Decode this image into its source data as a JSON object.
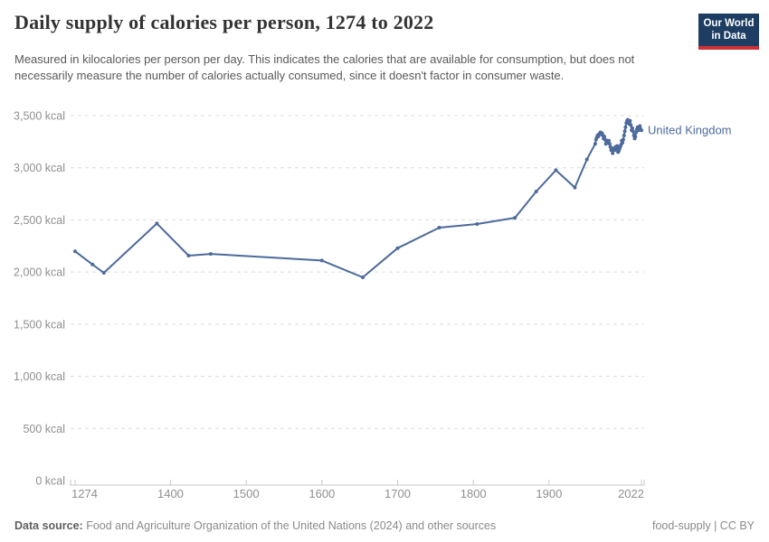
{
  "header": {
    "title": "Daily supply of calories per person, 1274 to 2022",
    "subtitle": "Measured in kilocalories per person per day. This indicates the calories that are available for consumption, but does not necessarily measure the number of calories actually consumed, since it doesn't factor in consumer waste.",
    "logo": {
      "line1": "Our World",
      "line2": "in Data",
      "bg": "#1d3d63",
      "accent": "#cf3035"
    }
  },
  "chart_data": {
    "type": "line",
    "title": "Daily supply of calories per person, 1274 to 2022",
    "xlabel": "",
    "ylabel": "",
    "xlim": [
      1274,
      2022
    ],
    "ylim": [
      0,
      3500
    ],
    "grid": "horizontal-dashed",
    "legend_position": "end-of-line-label",
    "line_color": "#4C6A9C",
    "grid_color": "#dcdcdc",
    "axis_color": "#c9c9c9",
    "tick_label_color": "#8f8f8f",
    "yticks": [
      {
        "v": 0,
        "label": "0 kcal"
      },
      {
        "v": 500,
        "label": "500 kcal"
      },
      {
        "v": 1000,
        "label": "1,000 kcal"
      },
      {
        "v": 1500,
        "label": "1,500 kcal"
      },
      {
        "v": 2000,
        "label": "2,000 kcal"
      },
      {
        "v": 2500,
        "label": "2,500 kcal"
      },
      {
        "v": 3000,
        "label": "3,000 kcal"
      },
      {
        "v": 3500,
        "label": "3,500 kcal"
      }
    ],
    "xticks": [
      1274,
      1400,
      1500,
      1600,
      1700,
      1800,
      1900,
      2022
    ],
    "series": [
      {
        "name": "United Kingdom",
        "color": "#4C6A9C",
        "points": [
          [
            1274,
            2199
          ],
          [
            1297,
            2072
          ],
          [
            1312,
            1993
          ],
          [
            1382,
            2466
          ],
          [
            1424,
            2157
          ],
          [
            1453,
            2174
          ],
          [
            1600,
            2110
          ],
          [
            1654,
            1949
          ],
          [
            1700,
            2229
          ],
          [
            1755,
            2426
          ],
          [
            1805,
            2460
          ],
          [
            1855,
            2520
          ],
          [
            1883,
            2772
          ],
          [
            1909,
            2977
          ],
          [
            1934,
            2810
          ],
          [
            1950,
            3080
          ],
          [
            1961,
            3230
          ],
          [
            1962,
            3270
          ],
          [
            1963,
            3290
          ],
          [
            1964,
            3310
          ],
          [
            1965,
            3300
          ],
          [
            1966,
            3320
          ],
          [
            1967,
            3330
          ],
          [
            1968,
            3340
          ],
          [
            1969,
            3320
          ],
          [
            1970,
            3330
          ],
          [
            1971,
            3310
          ],
          [
            1972,
            3280
          ],
          [
            1973,
            3300
          ],
          [
            1974,
            3270
          ],
          [
            1975,
            3230
          ],
          [
            1976,
            3250
          ],
          [
            1977,
            3260
          ],
          [
            1978,
            3240
          ],
          [
            1979,
            3260
          ],
          [
            1980,
            3230
          ],
          [
            1981,
            3200
          ],
          [
            1982,
            3170
          ],
          [
            1983,
            3180
          ],
          [
            1984,
            3140
          ],
          [
            1985,
            3170
          ],
          [
            1986,
            3190
          ],
          [
            1987,
            3170
          ],
          [
            1988,
            3200
          ],
          [
            1989,
            3180
          ],
          [
            1990,
            3210
          ],
          [
            1991,
            3150
          ],
          [
            1992,
            3160
          ],
          [
            1993,
            3180
          ],
          [
            1994,
            3200
          ],
          [
            1995,
            3220
          ],
          [
            1996,
            3260
          ],
          [
            1997,
            3240
          ],
          [
            1998,
            3270
          ],
          [
            1999,
            3310
          ],
          [
            2000,
            3350
          ],
          [
            2001,
            3390
          ],
          [
            2002,
            3430
          ],
          [
            2003,
            3450
          ],
          [
            2004,
            3460
          ],
          [
            2005,
            3440
          ],
          [
            2006,
            3420
          ],
          [
            2007,
            3450
          ],
          [
            2008,
            3410
          ],
          [
            2009,
            3360
          ],
          [
            2010,
            3380
          ],
          [
            2011,
            3350
          ],
          [
            2012,
            3310
          ],
          [
            2013,
            3280
          ],
          [
            2014,
            3300
          ],
          [
            2015,
            3340
          ],
          [
            2016,
            3370
          ],
          [
            2017,
            3390
          ],
          [
            2018,
            3360
          ],
          [
            2019,
            3380
          ],
          [
            2020,
            3400
          ],
          [
            2021,
            3370
          ],
          [
            2022,
            3360
          ]
        ]
      }
    ]
  },
  "footer": {
    "datasource_label": "Data source:",
    "datasource_text": " Food and Agriculture Organization of the United Nations (2024) and other sources",
    "note_right": "food-supply | CC BY"
  }
}
